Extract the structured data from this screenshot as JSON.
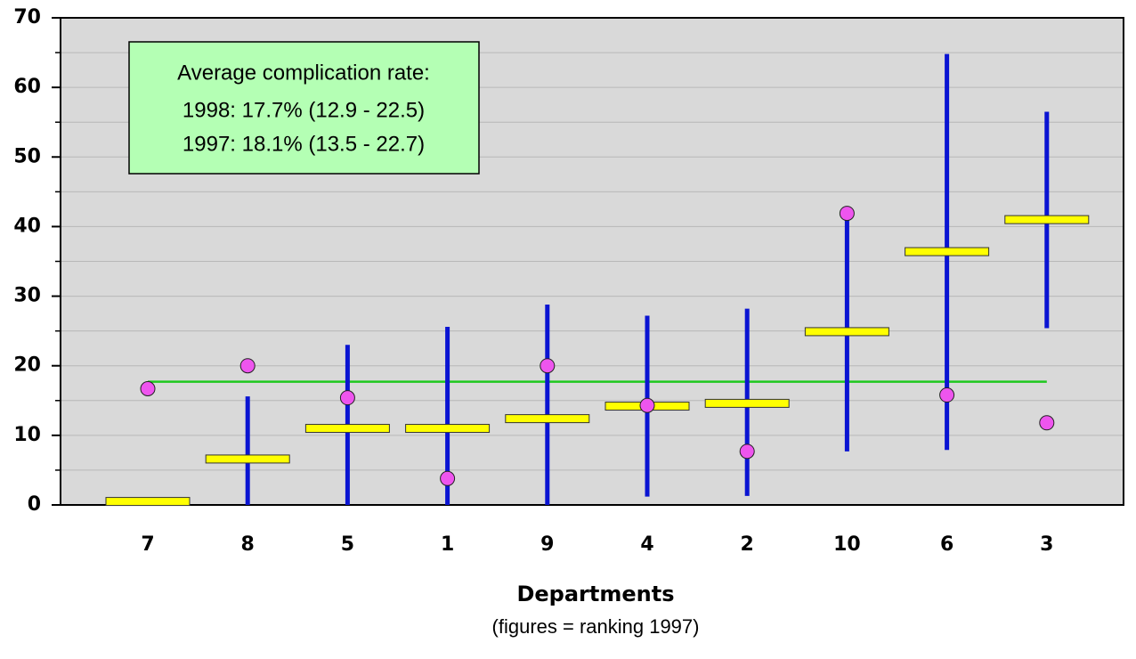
{
  "chart_data": {
    "type": "interval",
    "xlabel": "Departments",
    "xlabel_note": "(figures = ranking 1997)",
    "categories": [
      "7",
      "8",
      "5",
      "1",
      "9",
      "4",
      "2",
      "10",
      "6",
      "3"
    ],
    "series": [
      {
        "kind": "range",
        "color": "#0a14d2",
        "low": [
          null,
          0,
          0,
          0,
          0,
          1.2,
          1.3,
          7.7,
          7.9,
          25.4
        ],
        "high": [
          null,
          15.6,
          23,
          25.6,
          28.8,
          27.2,
          28.2,
          42,
          64.8,
          56.5
        ]
      },
      {
        "kind": "bar-marker",
        "color": "#ffff00",
        "values": [
          0.5,
          6.6,
          11,
          11,
          12.4,
          14.2,
          14.6,
          24.9,
          36.4,
          41
        ]
      },
      {
        "kind": "dot",
        "color": "#ee55ee",
        "values": [
          16.7,
          20,
          15.4,
          3.8,
          20,
          14.3,
          7.7,
          41.9,
          15.8,
          11.8
        ]
      }
    ],
    "reference_line": {
      "value": 17.7,
      "color": "#1ec81e"
    },
    "annotation": {
      "lines": [
        "Average complication rate:",
        "1998: 17.7% (12.9 - 22.5)",
        "1997: 18.1% (13.5 - 22.7)"
      ],
      "color": "#b4ffb4"
    },
    "ylim": [
      0,
      70
    ],
    "yticks": [
      0,
      10,
      20,
      30,
      40,
      50,
      60,
      70
    ],
    "yminor_ticks": [
      5,
      15,
      25,
      35,
      45,
      55,
      65
    ],
    "grid": true,
    "plot_background": "#d9d9d9"
  }
}
